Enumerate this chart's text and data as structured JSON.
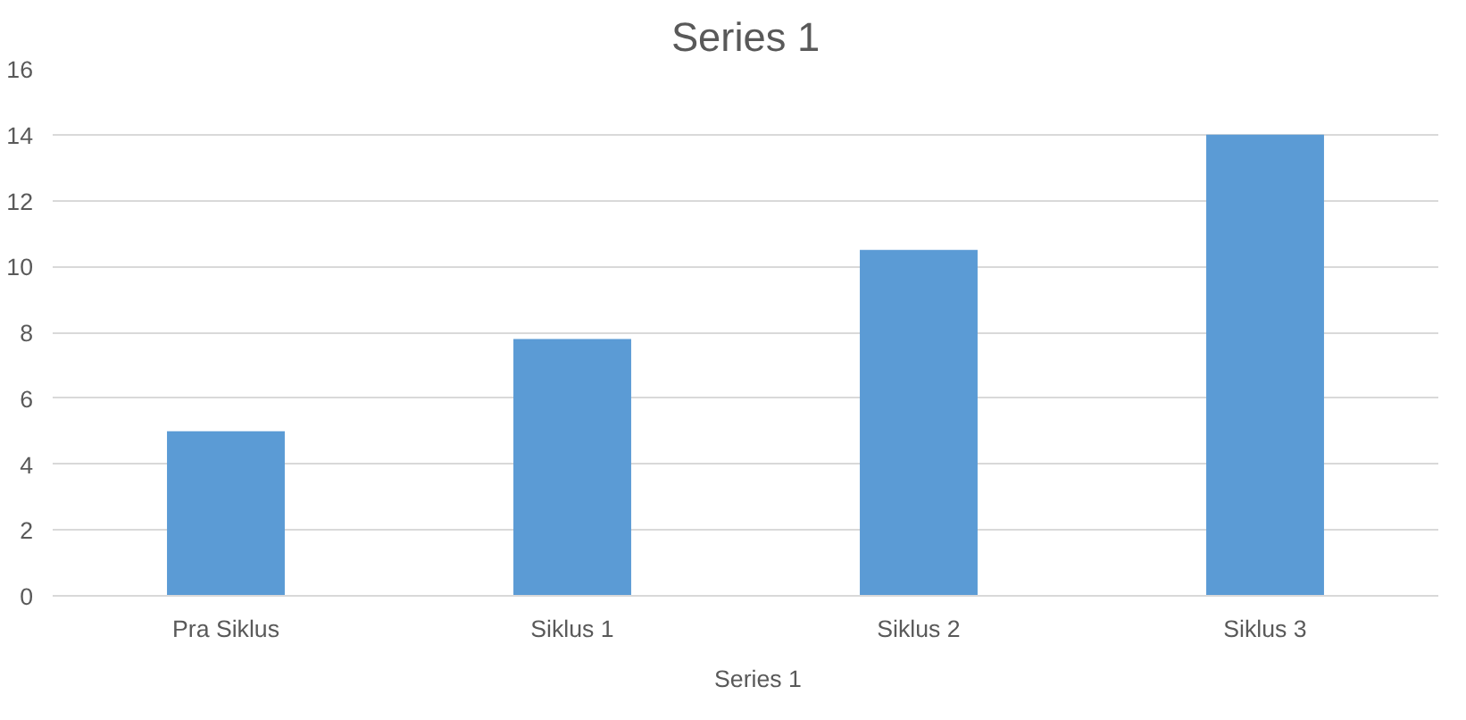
{
  "chart_data": {
    "type": "bar",
    "title": "Series 1",
    "categories": [
      "Pra Siklus",
      "Siklus 1",
      "Siklus 2",
      "Siklus 3"
    ],
    "series": [
      {
        "name": "Series 1",
        "color": "#5b9bd5",
        "values": [
          5,
          7.8,
          10.5,
          14
        ]
      }
    ],
    "ylim": [
      0,
      16
    ],
    "yticks": [
      0,
      2,
      4,
      6,
      8,
      10,
      12,
      14,
      16
    ],
    "grid": "y",
    "legend": "bottom"
  }
}
